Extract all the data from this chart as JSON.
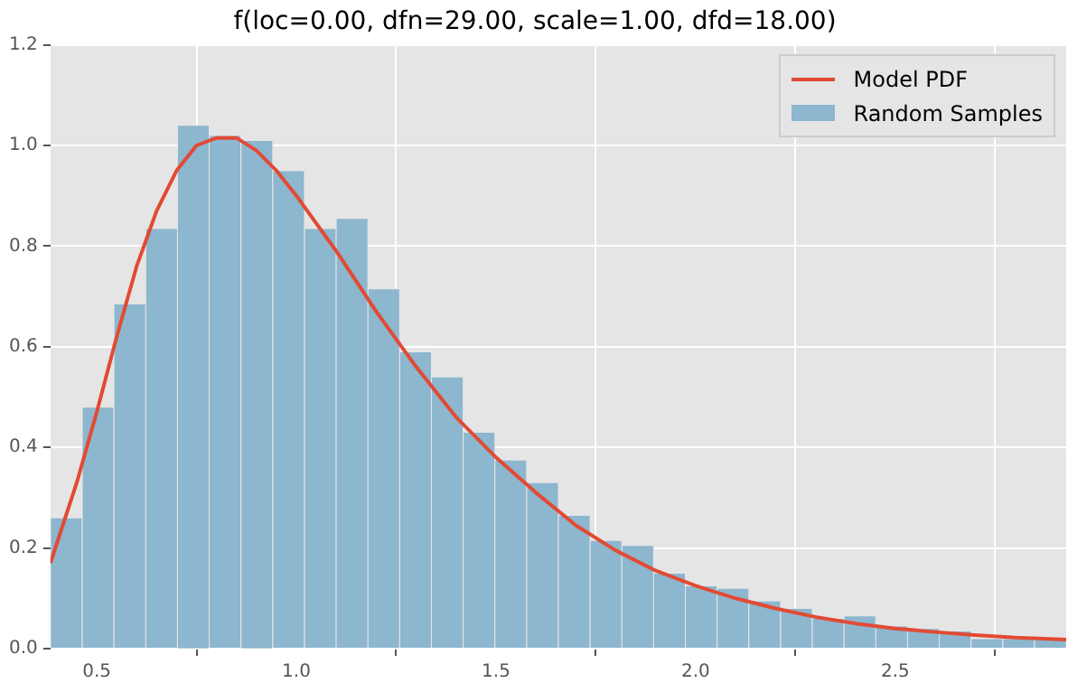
{
  "chart_data": {
    "type": "histogram",
    "title": "f(loc=0.00, dfn=29.00, scale=1.00, dfd=18.00)",
    "bins": [
      0.384,
      0.464,
      0.543,
      0.623,
      0.702,
      0.782,
      0.861,
      0.941,
      1.02,
      1.1,
      1.179,
      1.259,
      1.338,
      1.418,
      1.497,
      1.577,
      1.656,
      1.736,
      1.815,
      1.895,
      1.974,
      2.054,
      2.133,
      2.213,
      2.292,
      2.372,
      2.451,
      2.531,
      2.61,
      2.69,
      2.769,
      2.849,
      2.928
    ],
    "series": [
      {
        "name": "Model PDF",
        "type": "line",
        "color": "#e24a33",
        "x": [
          0.384,
          0.45,
          0.5,
          0.55,
          0.6,
          0.65,
          0.7,
          0.75,
          0.8,
          0.85,
          0.9,
          0.95,
          1.0,
          1.1,
          1.2,
          1.3,
          1.4,
          1.5,
          1.6,
          1.7,
          1.8,
          1.9,
          2.0,
          2.1,
          2.2,
          2.3,
          2.4,
          2.5,
          2.6,
          2.7,
          2.8,
          2.928
        ],
        "values": [
          0.17,
          0.33,
          0.47,
          0.62,
          0.76,
          0.87,
          0.95,
          1.0,
          1.015,
          1.015,
          0.99,
          0.95,
          0.9,
          0.79,
          0.67,
          0.56,
          0.46,
          0.38,
          0.31,
          0.245,
          0.195,
          0.155,
          0.125,
          0.1,
          0.08,
          0.063,
          0.05,
          0.04,
          0.033,
          0.027,
          0.022,
          0.018
        ]
      },
      {
        "name": "Random Samples",
        "color": "#8db6cf",
        "values": [
          0.26,
          0.48,
          0.685,
          0.835,
          1.04,
          1.02,
          1.01,
          0.95,
          0.835,
          0.855,
          0.715,
          0.59,
          0.54,
          0.43,
          0.375,
          0.33,
          0.265,
          0.215,
          0.205,
          0.15,
          0.125,
          0.12,
          0.095,
          0.08,
          0.06,
          0.065,
          0.045,
          0.04,
          0.035,
          0.02,
          0.02,
          0.02
        ]
      }
    ],
    "xlim": [
      0.384,
      2.928
    ],
    "xticks": [
      {
        "value": 0.5,
        "label": "0.5"
      },
      {
        "value": 1.0,
        "label": "1.0"
      },
      {
        "value": 1.5,
        "label": "1.5"
      },
      {
        "value": 2.0,
        "label": "2.0"
      },
      {
        "value": 2.5,
        "label": "2.5"
      }
    ],
    "ylim": [
      0,
      1.2
    ],
    "yticks": [
      {
        "value": 0,
        "label": "0.0"
      },
      {
        "value": 0.2,
        "label": "0.2"
      },
      {
        "value": 0.4,
        "label": "0.4"
      },
      {
        "value": 0.6,
        "label": "0.6"
      },
      {
        "value": 0.8,
        "label": "0.8"
      },
      {
        "value": 1.0,
        "label": "1.0"
      },
      {
        "value": 1.2,
        "label": "1.2"
      }
    ],
    "grid": true,
    "legend": "top right",
    "marker": "none",
    "line_style": "solid"
  }
}
